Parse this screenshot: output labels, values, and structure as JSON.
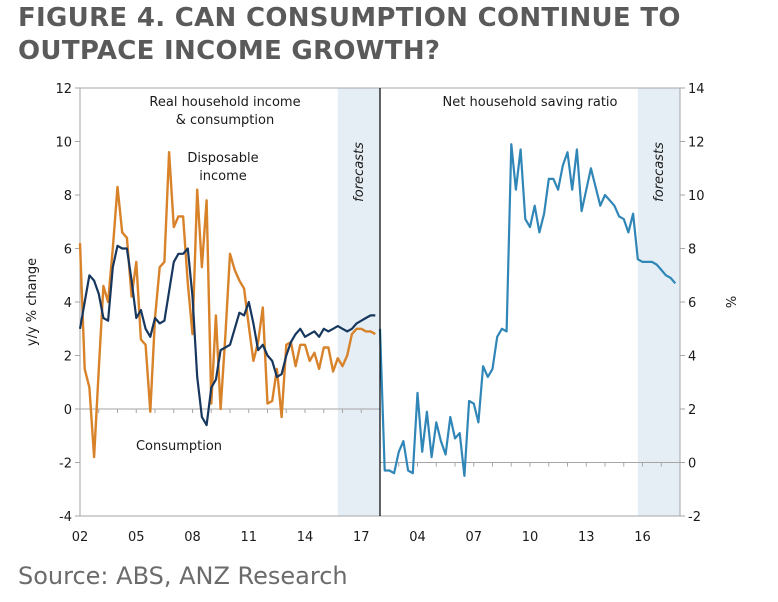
{
  "figure": {
    "title": "FIGURE 4. CAN CONSUMPTION CONTINUE TO OUTPACE INCOME GROWTH?",
    "source": "Source: ABS, ANZ Research"
  },
  "colors": {
    "income": "#d8822a",
    "consumption": "#17375e",
    "saving": "#2f86b7",
    "forecast_band": "#e5eef5"
  },
  "chart_data": [
    {
      "type": "line",
      "panel": "left",
      "title": "Real household income & consumption",
      "title_lines": [
        "Real household income",
        "& consumption"
      ],
      "xlabel": "",
      "ylabel": "y/y % change",
      "ylim": [
        -4,
        12
      ],
      "yticks": [
        -4,
        -2,
        0,
        2,
        4,
        6,
        8,
        10,
        12
      ],
      "xlim": [
        2002,
        2018
      ],
      "xticks": [
        2002,
        2005,
        2008,
        2011,
        2014,
        2017
      ],
      "xtick_labels": [
        "02",
        "05",
        "08",
        "11",
        "14",
        "17"
      ],
      "forecast_start": 2015.75,
      "forecast_label": "forecasts",
      "annotations": [
        {
          "text_lines": [
            "Disposable",
            "income"
          ],
          "series": "Disposable income"
        },
        {
          "text_lines": [
            "Consumption"
          ],
          "series": "Consumption"
        }
      ],
      "series": [
        {
          "name": "Disposable income",
          "color": "#d8822a",
          "x": [
            2002,
            2002.25,
            2002.5,
            2002.75,
            2003,
            2003.25,
            2003.5,
            2003.75,
            2004,
            2004.25,
            2004.5,
            2004.75,
            2005,
            2005.25,
            2005.5,
            2005.75,
            2006,
            2006.25,
            2006.5,
            2006.75,
            2007,
            2007.25,
            2007.5,
            2007.75,
            2008,
            2008.25,
            2008.5,
            2008.75,
            2009,
            2009.25,
            2009.5,
            2009.75,
            2010,
            2010.25,
            2010.5,
            2010.75,
            2011,
            2011.25,
            2011.5,
            2011.75,
            2012,
            2012.25,
            2012.5,
            2012.75,
            2013,
            2013.25,
            2013.5,
            2013.75,
            2014,
            2014.25,
            2014.5,
            2014.75,
            2015,
            2015.25,
            2015.5,
            2015.75,
            2016,
            2016.25,
            2016.5,
            2016.75,
            2017,
            2017.25,
            2017.5,
            2017.75
          ],
          "values": [
            6.2,
            1.5,
            0.8,
            -1.8,
            1.5,
            4.6,
            4.0,
            6.0,
            8.3,
            6.6,
            6.4,
            4.2,
            5.5,
            2.6,
            2.4,
            -0.1,
            3.4,
            5.3,
            5.5,
            9.6,
            6.8,
            7.2,
            7.2,
            4.7,
            2.8,
            8.2,
            5.3,
            7.8,
            0.2,
            3.5,
            0.0,
            2.7,
            5.8,
            5.2,
            4.8,
            4.5,
            3.1,
            1.8,
            2.5,
            3.8,
            0.2,
            0.3,
            1.5,
            -0.3,
            2.4,
            2.5,
            1.6,
            2.4,
            2.4,
            1.8,
            2.1,
            1.5,
            2.3,
            2.3,
            1.4,
            1.9,
            1.6,
            2.0,
            2.8,
            3.0,
            3.0,
            2.9,
            2.9,
            2.8
          ]
        },
        {
          "name": "Consumption",
          "color": "#17375e",
          "x": [
            2002,
            2002.25,
            2002.5,
            2002.75,
            2003,
            2003.25,
            2003.5,
            2003.75,
            2004,
            2004.25,
            2004.5,
            2004.75,
            2005,
            2005.25,
            2005.5,
            2005.75,
            2006,
            2006.25,
            2006.5,
            2006.75,
            2007,
            2007.25,
            2007.5,
            2007.75,
            2008,
            2008.25,
            2008.5,
            2008.75,
            2009,
            2009.25,
            2009.5,
            2009.75,
            2010,
            2010.25,
            2010.5,
            2010.75,
            2011,
            2011.25,
            2011.5,
            2011.75,
            2012,
            2012.25,
            2012.5,
            2012.75,
            2013,
            2013.25,
            2013.5,
            2013.75,
            2014,
            2014.25,
            2014.5,
            2014.75,
            2015,
            2015.25,
            2015.5,
            2015.75,
            2016,
            2016.25,
            2016.5,
            2016.75,
            2017,
            2017.25,
            2017.5,
            2017.75
          ],
          "values": [
            3.0,
            4.0,
            5.0,
            4.8,
            4.3,
            3.4,
            3.3,
            5.3,
            6.1,
            6.0,
            6.0,
            4.8,
            3.4,
            3.7,
            3.0,
            2.7,
            3.4,
            3.2,
            3.3,
            4.4,
            5.5,
            5.8,
            5.8,
            6.0,
            4.2,
            1.2,
            -0.3,
            -0.6,
            0.8,
            1.1,
            2.2,
            2.3,
            2.4,
            3.0,
            3.6,
            3.5,
            4.0,
            3.2,
            2.2,
            2.4,
            2.0,
            1.8,
            1.2,
            1.3,
            2.0,
            2.5,
            2.8,
            3.0,
            2.7,
            2.8,
            2.9,
            2.7,
            3.0,
            2.9,
            3.0,
            3.1,
            3.0,
            2.9,
            3.0,
            3.2,
            3.3,
            3.4,
            3.5,
            3.5
          ]
        }
      ]
    },
    {
      "type": "line",
      "panel": "right",
      "title": "Net household saving ratio",
      "xlabel": "",
      "ylabel": "%",
      "ylim": [
        -2,
        14
      ],
      "yticks": [
        -2,
        0,
        2,
        4,
        6,
        8,
        10,
        12,
        14
      ],
      "xlim": [
        2002,
        2018
      ],
      "xticks": [
        2004,
        2007,
        2010,
        2013,
        2016
      ],
      "xtick_labels": [
        "04",
        "07",
        "10",
        "13",
        "16"
      ],
      "forecast_start": 2015.75,
      "forecast_label": "forecasts",
      "series": [
        {
          "name": "Net household saving ratio",
          "color": "#2f86b7",
          "x": [
            2002,
            2002.25,
            2002.5,
            2002.75,
            2003,
            2003.25,
            2003.5,
            2003.75,
            2004,
            2004.25,
            2004.5,
            2004.75,
            2005,
            2005.25,
            2005.5,
            2005.75,
            2006,
            2006.25,
            2006.5,
            2006.75,
            2007,
            2007.25,
            2007.5,
            2007.75,
            2008,
            2008.25,
            2008.5,
            2008.75,
            2009,
            2009.25,
            2009.5,
            2009.75,
            2010,
            2010.25,
            2010.5,
            2010.75,
            2011,
            2011.25,
            2011.5,
            2011.75,
            2012,
            2012.25,
            2012.5,
            2012.75,
            2013,
            2013.25,
            2013.5,
            2013.75,
            2014,
            2014.25,
            2014.5,
            2014.75,
            2015,
            2015.25,
            2015.5,
            2015.75,
            2016,
            2016.25,
            2016.5,
            2016.75,
            2017,
            2017.25,
            2017.5,
            2017.75
          ],
          "values": [
            5.0,
            -0.3,
            -0.3,
            -0.4,
            0.4,
            0.8,
            -0.3,
            -0.4,
            2.6,
            0.4,
            1.9,
            0.2,
            1.5,
            0.8,
            0.3,
            1.7,
            0.9,
            1.1,
            -0.5,
            2.3,
            2.2,
            1.5,
            3.6,
            3.2,
            3.5,
            4.7,
            5.0,
            4.9,
            11.9,
            10.2,
            11.7,
            9.1,
            8.8,
            9.6,
            8.6,
            9.3,
            10.6,
            10.6,
            10.2,
            11.1,
            11.6,
            10.2,
            11.7,
            9.4,
            10.2,
            11.0,
            10.3,
            9.6,
            10.0,
            9.8,
            9.6,
            9.2,
            9.1,
            8.6,
            9.3,
            7.6,
            7.5,
            7.5,
            7.5,
            7.4,
            7.2,
            7.0,
            6.9,
            6.7
          ]
        }
      ]
    }
  ]
}
